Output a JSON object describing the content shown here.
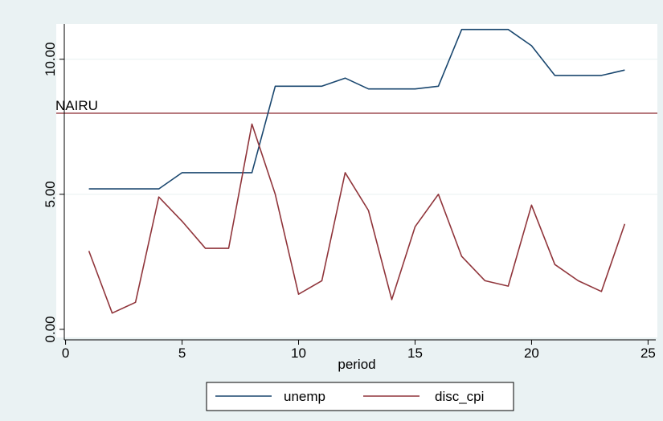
{
  "chart_data": {
    "type": "line",
    "xlabel": "period",
    "ylabel": "",
    "xlim": [
      -0.4,
      25.4
    ],
    "ylim": [
      -0.3,
      11.3
    ],
    "x_ticks": [
      0,
      5,
      10,
      15,
      20,
      25
    ],
    "x_tick_labels": [
      "0",
      "5",
      "10",
      "15",
      "20",
      "25"
    ],
    "y_ticks": [
      0,
      5,
      10
    ],
    "y_tick_labels": [
      "0.00",
      "5.00",
      "10.00"
    ],
    "grid": "horizontal",
    "legend_position": "bottom",
    "x": [
      1,
      2,
      3,
      4,
      5,
      6,
      7,
      8,
      9,
      10,
      11,
      12,
      13,
      14,
      15,
      16,
      17,
      18,
      19,
      20,
      21,
      22,
      23,
      24
    ],
    "series": [
      {
        "name": "unemp",
        "color": "#1a476f",
        "values": [
          5.2,
          5.2,
          5.2,
          5.2,
          5.8,
          5.8,
          5.8,
          5.8,
          9.0,
          9.0,
          9.0,
          9.3,
          8.9,
          8.9,
          8.9,
          9.0,
          11.1,
          11.1,
          11.1,
          10.5,
          9.4,
          9.4,
          9.4,
          9.6
        ]
      },
      {
        "name": "disc_cpi",
        "color": "#90353b",
        "values": [
          2.9,
          0.6,
          1.0,
          4.9,
          4.0,
          3.0,
          3.0,
          7.6,
          5.0,
          1.3,
          1.8,
          5.8,
          4.4,
          1.1,
          3.8,
          5.0,
          2.7,
          1.8,
          1.6,
          4.6,
          2.4,
          1.8,
          1.4,
          3.9
        ]
      }
    ],
    "reference_line": {
      "label": "NAIRU",
      "y": 8.0,
      "color": "#90353b"
    }
  },
  "colors": {
    "outer_background": "#eaf2f3",
    "plot_background": "#ffffff",
    "grid": "#eaf2f3",
    "axis": "#000000"
  }
}
